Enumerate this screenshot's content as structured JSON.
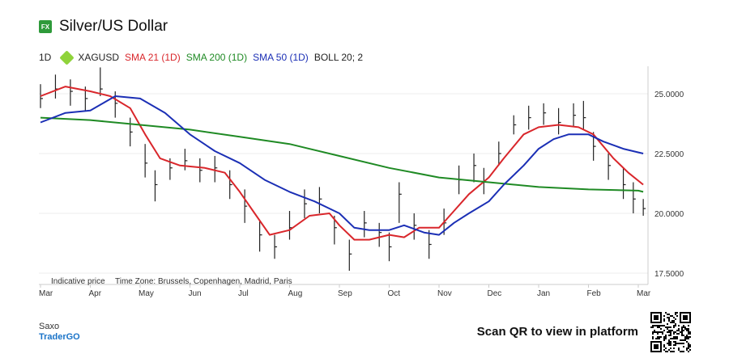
{
  "header": {
    "badge": "FX",
    "title": "Silver/US Dollar"
  },
  "legend": {
    "timeframe": "1D",
    "symbol": "XAGUSD",
    "sma21": "SMA 21 (1D)",
    "sma200": "SMA 200 (1D)",
    "sma50": "SMA 50 (1D)",
    "boll": "BOLL 20; 2"
  },
  "colors": {
    "sma21": "#d9262b",
    "sma200": "#1f8a24",
    "sma50": "#1b2fb5",
    "candles": "#222222",
    "tag": "#8fd33a"
  },
  "footer": {
    "indicative": "Indicative price",
    "timezone": "Time Zone: Brussels, Copenhagen, Madrid, Paris",
    "brand": "Saxo",
    "product": "TraderGO",
    "cta": "Scan QR to view in platform"
  },
  "chart_data": {
    "type": "line",
    "x_labels": [
      "Mar",
      "Apr",
      "May",
      "Jun",
      "Jul",
      "Aug",
      "Sep",
      "Oct",
      "Nov",
      "Dec",
      "Jan",
      "Feb",
      "Mar"
    ],
    "y_ticks": [
      "25.0000",
      "22.5000",
      "20.0000",
      "17.5000"
    ],
    "ylim": [
      17.5,
      26.5
    ],
    "series": [
      {
        "name": "SMA 21 (1D)",
        "color": "#d9262b",
        "points": [
          [
            0,
            24.9
          ],
          [
            0.5,
            25.3
          ],
          [
            1,
            25.1
          ],
          [
            1.4,
            24.9
          ],
          [
            1.8,
            24.4
          ],
          [
            2.1,
            23.3
          ],
          [
            2.4,
            22.3
          ],
          [
            2.8,
            22.0
          ],
          [
            3.3,
            21.9
          ],
          [
            3.7,
            21.7
          ],
          [
            4.0,
            20.9
          ],
          [
            4.3,
            20.0
          ],
          [
            4.6,
            19.1
          ],
          [
            5.0,
            19.3
          ],
          [
            5.4,
            19.9
          ],
          [
            5.8,
            20.0
          ],
          [
            6.0,
            19.5
          ],
          [
            6.3,
            18.9
          ],
          [
            6.6,
            18.9
          ],
          [
            7.0,
            19.1
          ],
          [
            7.3,
            19.0
          ],
          [
            7.6,
            19.4
          ],
          [
            8.0,
            19.4
          ],
          [
            8.3,
            20.1
          ],
          [
            8.6,
            20.8
          ],
          [
            9.0,
            21.5
          ],
          [
            9.3,
            22.3
          ],
          [
            9.7,
            23.3
          ],
          [
            10.0,
            23.6
          ],
          [
            10.4,
            23.7
          ],
          [
            10.8,
            23.6
          ],
          [
            11.1,
            23.3
          ],
          [
            11.5,
            22.3
          ],
          [
            11.8,
            21.7
          ],
          [
            12.1,
            21.2
          ]
        ]
      },
      {
        "name": "SMA 200 (1D)",
        "color": "#1f8a24",
        "points": [
          [
            0,
            24.0
          ],
          [
            1,
            23.9
          ],
          [
            2,
            23.7
          ],
          [
            3,
            23.5
          ],
          [
            4,
            23.2
          ],
          [
            5,
            22.9
          ],
          [
            6,
            22.4
          ],
          [
            7,
            21.9
          ],
          [
            8,
            21.5
          ],
          [
            9,
            21.3
          ],
          [
            10,
            21.1
          ],
          [
            11,
            21.0
          ],
          [
            12,
            20.95
          ],
          [
            12.1,
            20.9
          ]
        ]
      },
      {
        "name": "SMA 50 (1D)",
        "color": "#1b2fb5",
        "points": [
          [
            0,
            23.8
          ],
          [
            0.5,
            24.2
          ],
          [
            1,
            24.3
          ],
          [
            1.5,
            24.9
          ],
          [
            2,
            24.8
          ],
          [
            2.5,
            24.2
          ],
          [
            3,
            23.3
          ],
          [
            3.5,
            22.6
          ],
          [
            4,
            22.1
          ],
          [
            4.5,
            21.4
          ],
          [
            5,
            20.9
          ],
          [
            5.5,
            20.5
          ],
          [
            6,
            20.0
          ],
          [
            6.3,
            19.4
          ],
          [
            6.6,
            19.3
          ],
          [
            7,
            19.3
          ],
          [
            7.3,
            19.5
          ],
          [
            7.7,
            19.2
          ],
          [
            8,
            19.1
          ],
          [
            8.3,
            19.6
          ],
          [
            8.6,
            20.0
          ],
          [
            9,
            20.5
          ],
          [
            9.3,
            21.2
          ],
          [
            9.7,
            22.0
          ],
          [
            10,
            22.7
          ],
          [
            10.3,
            23.1
          ],
          [
            10.6,
            23.3
          ],
          [
            11,
            23.3
          ],
          [
            11.3,
            23.0
          ],
          [
            11.7,
            22.7
          ],
          [
            12.1,
            22.5
          ]
        ]
      }
    ],
    "price_bars": [
      [
        0,
        24.8,
        25.4,
        24.4
      ],
      [
        0.3,
        25.2,
        25.8,
        24.8
      ],
      [
        0.6,
        25.1,
        25.6,
        24.5
      ],
      [
        0.9,
        24.8,
        25.3,
        24.3
      ],
      [
        1.2,
        25.2,
        26.1,
        24.9
      ],
      [
        1.5,
        24.6,
        25.1,
        24.0
      ],
      [
        1.8,
        23.4,
        24.0,
        22.8
      ],
      [
        2.1,
        22.1,
        22.9,
        21.5
      ],
      [
        2.3,
        21.2,
        21.8,
        20.5
      ],
      [
        2.6,
        21.9,
        22.3,
        21.4
      ],
      [
        2.9,
        22.2,
        22.7,
        21.8
      ],
      [
        3.2,
        21.8,
        22.3,
        21.3
      ],
      [
        3.5,
        21.9,
        22.4,
        21.3
      ],
      [
        3.8,
        21.2,
        21.8,
        20.6
      ],
      [
        4.1,
        20.3,
        21.0,
        19.6
      ],
      [
        4.4,
        19.1,
        19.7,
        18.4
      ],
      [
        4.7,
        18.6,
        19.1,
        18.1
      ],
      [
        5.0,
        19.4,
        20.1,
        18.9
      ],
      [
        5.3,
        20.4,
        21.0,
        19.8
      ],
      [
        5.6,
        20.6,
        21.1,
        20.0
      ],
      [
        5.9,
        19.4,
        19.9,
        18.7
      ],
      [
        6.2,
        18.3,
        18.9,
        17.6
      ],
      [
        6.5,
        19.6,
        20.1,
        19.0
      ],
      [
        6.8,
        19.2,
        19.6,
        18.6
      ],
      [
        7.0,
        18.6,
        19.2,
        18.0
      ],
      [
        7.2,
        20.8,
        21.3,
        19.6
      ],
      [
        7.5,
        19.5,
        20.0,
        18.9
      ],
      [
        7.8,
        18.7,
        19.3,
        18.1
      ],
      [
        8.1,
        19.6,
        20.2,
        19.1
      ],
      [
        8.4,
        21.4,
        22.0,
        20.8
      ],
      [
        8.7,
        22.0,
        22.5,
        21.3
      ],
      [
        8.9,
        21.3,
        21.9,
        20.8
      ],
      [
        9.2,
        22.5,
        23.0,
        22.0
      ],
      [
        9.5,
        23.7,
        24.1,
        23.3
      ],
      [
        9.8,
        24.0,
        24.5,
        23.5
      ],
      [
        10.1,
        24.2,
        24.6,
        23.7
      ],
      [
        10.4,
        23.8,
        24.4,
        23.3
      ],
      [
        10.7,
        24.1,
        24.6,
        23.6
      ],
      [
        10.9,
        24.0,
        24.7,
        23.5
      ],
      [
        11.1,
        22.8,
        23.4,
        22.2
      ],
      [
        11.4,
        22.0,
        22.5,
        21.4
      ],
      [
        11.7,
        21.2,
        21.9,
        20.6
      ],
      [
        11.9,
        20.6,
        21.3,
        20.0
      ],
      [
        12.1,
        20.2,
        20.6,
        19.9
      ]
    ]
  }
}
